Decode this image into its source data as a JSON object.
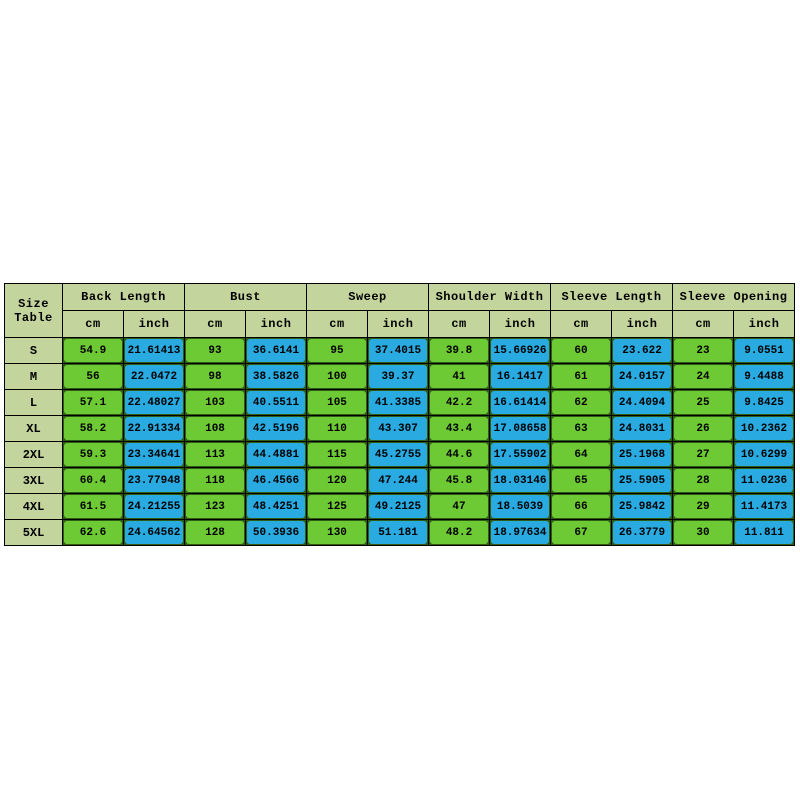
{
  "colors": {
    "page_bg": "#ffffff",
    "header_bg": "#c4d49d",
    "cm_cell": "#6dc934",
    "inch_cell": "#29abe2",
    "cell_corner": "#2e5c14",
    "border": "#000000",
    "text": "#000000"
  },
  "table": {
    "corner": {
      "line1": "Size",
      "line2": "Table"
    },
    "groups": [
      "Back Length",
      "Bust",
      "Sweep",
      "Shoulder Width",
      "Sleeve Length",
      "Sleeve Opening"
    ],
    "units": [
      "cm",
      "inch"
    ],
    "rows": [
      {
        "size": "S",
        "values": [
          "54.9",
          "21.61413",
          "93",
          "36.6141",
          "95",
          "37.4015",
          "39.8",
          "15.66926",
          "60",
          "23.622",
          "23",
          "9.0551"
        ]
      },
      {
        "size": "M",
        "values": [
          "56",
          "22.0472",
          "98",
          "38.5826",
          "100",
          "39.37",
          "41",
          "16.1417",
          "61",
          "24.0157",
          "24",
          "9.4488"
        ]
      },
      {
        "size": "L",
        "values": [
          "57.1",
          "22.48027",
          "103",
          "40.5511",
          "105",
          "41.3385",
          "42.2",
          "16.61414",
          "62",
          "24.4094",
          "25",
          "9.8425"
        ]
      },
      {
        "size": "XL",
        "values": [
          "58.2",
          "22.91334",
          "108",
          "42.5196",
          "110",
          "43.307",
          "43.4",
          "17.08658",
          "63",
          "24.8031",
          "26",
          "10.2362"
        ]
      },
      {
        "size": "2XL",
        "values": [
          "59.3",
          "23.34641",
          "113",
          "44.4881",
          "115",
          "45.2755",
          "44.6",
          "17.55902",
          "64",
          "25.1968",
          "27",
          "10.6299"
        ]
      },
      {
        "size": "3XL",
        "values": [
          "60.4",
          "23.77948",
          "118",
          "46.4566",
          "120",
          "47.244",
          "45.8",
          "18.03146",
          "65",
          "25.5905",
          "28",
          "11.0236"
        ]
      },
      {
        "size": "4XL",
        "values": [
          "61.5",
          "24.21255",
          "123",
          "48.4251",
          "125",
          "49.2125",
          "47",
          "18.5039",
          "66",
          "25.9842",
          "29",
          "11.4173"
        ]
      },
      {
        "size": "5XL",
        "values": [
          "62.6",
          "24.64562",
          "128",
          "50.3936",
          "130",
          "51.181",
          "48.2",
          "18.97634",
          "67",
          "26.3779",
          "30",
          "11.811"
        ]
      }
    ]
  },
  "chart_data": {
    "type": "table",
    "title": "Size Table",
    "categories": [
      "S",
      "M",
      "L",
      "XL",
      "2XL",
      "3XL",
      "4XL",
      "5XL"
    ],
    "series": [
      {
        "name": "Back Length cm",
        "values": [
          54.9,
          56,
          57.1,
          58.2,
          59.3,
          60.4,
          61.5,
          62.6
        ]
      },
      {
        "name": "Back Length inch",
        "values": [
          21.61413,
          22.0472,
          22.48027,
          22.91334,
          23.34641,
          23.77948,
          24.21255,
          24.64562
        ]
      },
      {
        "name": "Bust cm",
        "values": [
          93,
          98,
          103,
          108,
          113,
          118,
          123,
          128
        ]
      },
      {
        "name": "Bust inch",
        "values": [
          36.6141,
          38.5826,
          40.5511,
          42.5196,
          44.4881,
          46.4566,
          48.4251,
          50.3936
        ]
      },
      {
        "name": "Sweep cm",
        "values": [
          95,
          100,
          105,
          110,
          115,
          120,
          125,
          130
        ]
      },
      {
        "name": "Sweep inch",
        "values": [
          37.4015,
          39.37,
          41.3385,
          43.307,
          45.2755,
          47.244,
          49.2125,
          51.181
        ]
      },
      {
        "name": "Shoulder Width cm",
        "values": [
          39.8,
          41,
          42.2,
          43.4,
          44.6,
          45.8,
          47,
          48.2
        ]
      },
      {
        "name": "Shoulder Width inch",
        "values": [
          15.66926,
          16.1417,
          16.61414,
          17.08658,
          17.55902,
          18.03146,
          18.5039,
          18.97634
        ]
      },
      {
        "name": "Sleeve Length cm",
        "values": [
          60,
          61,
          62,
          63,
          64,
          65,
          66,
          67
        ]
      },
      {
        "name": "Sleeve Length inch",
        "values": [
          23.622,
          24.0157,
          24.4094,
          24.8031,
          25.1968,
          25.5905,
          25.9842,
          26.3779
        ]
      },
      {
        "name": "Sleeve Opening cm",
        "values": [
          23,
          24,
          25,
          26,
          27,
          28,
          29,
          30
        ]
      },
      {
        "name": "Sleeve Opening inch",
        "values": [
          9.0551,
          9.4488,
          9.8425,
          10.2362,
          10.6299,
          11.0236,
          11.4173,
          11.811
        ]
      }
    ]
  }
}
